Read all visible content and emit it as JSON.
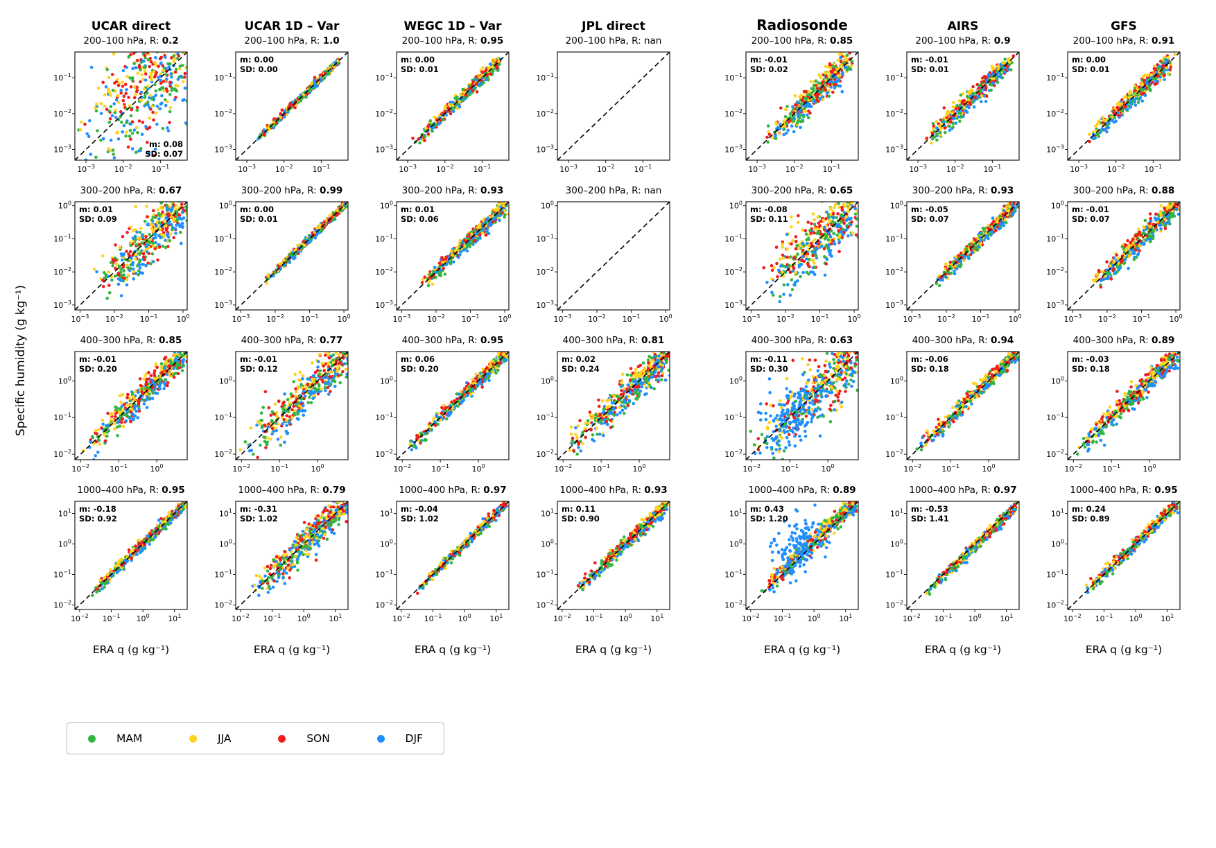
{
  "figure": {
    "ylabel": "Specific humidity (g kg⁻¹)"
  },
  "columns": [
    {
      "id": "ucar-direct",
      "label": "UCAR direct",
      "xlabel": "ERA q (g kg⁻¹)",
      "large": false
    },
    {
      "id": "ucar-1dvar",
      "label": "UCAR 1D – Var",
      "xlabel": "ERA q (g kg⁻¹)",
      "large": false
    },
    {
      "id": "wegc-1dvar",
      "label": "WEGC 1D – Var",
      "xlabel": "ERA q  (g kg⁻¹)",
      "large": false
    },
    {
      "id": "jpl-direct",
      "label": "JPL direct",
      "xlabel": "ERA q (g kg⁻¹)",
      "large": false
    },
    {
      "id": "radiosonde",
      "label": "Radiosonde",
      "xlabel": "ERA q (g kg⁻¹)",
      "large": true
    },
    {
      "id": "airs",
      "label": "AIRS",
      "xlabel": "ERA q  (g kg⁻¹)",
      "large": false
    },
    {
      "id": "gfs",
      "label": "GFS",
      "xlabel": "ERA q (g kg⁻¹)",
      "large": false
    }
  ],
  "seasons": [
    {
      "label": "MAM",
      "color": "#33b540"
    },
    {
      "label": "JJA",
      "color": "#ffd21f"
    },
    {
      "label": "SON",
      "color": "#ef1c1c"
    },
    {
      "label": "DJF",
      "color": "#1f8fff"
    }
  ],
  "chart_data": {
    "type": "scatter",
    "scale": "log-log",
    "identity_line": true,
    "x_axis": "ERA q (g kg⁻¹)",
    "y_axis": "Specific humidity (g kg⁻¹)",
    "rows": [
      {
        "layer": "200–100 hPa",
        "title_prefix": "200–100 hPa, R: ",
        "lim": [
          -3.3,
          -0.28
        ],
        "ticks": [
          -3,
          -2,
          -1
        ],
        "data_lo": -2.75,
        "data_hi": -0.55
      },
      {
        "layer": "300–200 hPa",
        "title_prefix": "300–200 hPa, R: ",
        "lim": [
          -3.15,
          0.12
        ],
        "ticks": [
          -3,
          -2,
          -1,
          0
        ],
        "data_lo": -2.35,
        "data_hi": 0.02
      },
      {
        "layer": "400–300 hPa",
        "title_prefix": "400–300 hPa, R: ",
        "lim": [
          -2.15,
          0.8
        ],
        "ticks": [
          -2,
          -1,
          0
        ],
        "data_lo": -1.85,
        "data_hi": 0.72
      },
      {
        "layer": "1000–400 hPa",
        "title_prefix": "1000–400 hPa, R: ",
        "lim": [
          -2.15,
          1.4
        ],
        "ticks": [
          -2,
          -1,
          0,
          1
        ],
        "data_lo": -1.55,
        "data_hi": 1.3
      }
    ],
    "panels": [
      {
        "col": 0,
        "row": 0,
        "R": "0.2",
        "Rv": 0.2,
        "m": "m: 0.08",
        "sd": "SD: 0.07",
        "ann": "br",
        "yoff": 0.25
      },
      {
        "col": 1,
        "row": 0,
        "R": "1.0",
        "Rv": 1.0,
        "m": "m: 0.00",
        "sd": "SD: 0.00",
        "ann": "tl"
      },
      {
        "col": 2,
        "row": 0,
        "R": "0.95",
        "Rv": 0.95,
        "m": "m: 0.00",
        "sd": "SD: 0.01",
        "ann": "tl"
      },
      {
        "col": 3,
        "row": 0,
        "R": "nan",
        "Rv": null,
        "m": "",
        "sd": "",
        "ann": "none",
        "empty": true
      },
      {
        "col": 4,
        "row": 0,
        "R": "0.85",
        "Rv": 0.85,
        "m": "m: -0.01",
        "sd": "SD: 0.02",
        "ann": "tl"
      },
      {
        "col": 5,
        "row": 0,
        "R": "0.9",
        "Rv": 0.9,
        "m": "m: -0.01",
        "sd": "SD: 0.01",
        "ann": "tl"
      },
      {
        "col": 6,
        "row": 0,
        "R": "0.91",
        "Rv": 0.91,
        "m": "m: 0.00",
        "sd": "SD: 0.01",
        "ann": "tl"
      },
      {
        "col": 0,
        "row": 1,
        "R": "0.67",
        "Rv": 0.67,
        "m": "m: 0.01",
        "sd": "SD: 0.09",
        "ann": "tl"
      },
      {
        "col": 1,
        "row": 1,
        "R": "0.99",
        "Rv": 0.99,
        "m": "m: 0.00",
        "sd": "SD: 0.01",
        "ann": "tl"
      },
      {
        "col": 2,
        "row": 1,
        "R": "0.93",
        "Rv": 0.93,
        "m": "m: 0.01",
        "sd": "SD: 0.06",
        "ann": "tl"
      },
      {
        "col": 3,
        "row": 1,
        "R": "nan",
        "Rv": null,
        "m": "",
        "sd": "",
        "ann": "none",
        "empty": true
      },
      {
        "col": 4,
        "row": 1,
        "R": "0.65",
        "Rv": 0.65,
        "m": "m: -0.08",
        "sd": "SD: 0.11",
        "ann": "tl"
      },
      {
        "col": 5,
        "row": 1,
        "R": "0.93",
        "Rv": 0.93,
        "m": "m: -0.05",
        "sd": "SD: 0.07",
        "ann": "tl"
      },
      {
        "col": 6,
        "row": 1,
        "R": "0.88",
        "Rv": 0.88,
        "m": "m: -0.01",
        "sd": "SD: 0.07",
        "ann": "tl"
      },
      {
        "col": 0,
        "row": 2,
        "R": "0.85",
        "Rv": 0.85,
        "m": "m: -0.01",
        "sd": "SD: 0.20",
        "ann": "tl"
      },
      {
        "col": 1,
        "row": 2,
        "R": "0.77",
        "Rv": 0.77,
        "m": "m: -0.01",
        "sd": "SD: 0.12",
        "ann": "tl"
      },
      {
        "col": 2,
        "row": 2,
        "R": "0.95",
        "Rv": 0.95,
        "m": "m: 0.06",
        "sd": "SD: 0.20",
        "ann": "tl"
      },
      {
        "col": 3,
        "row": 2,
        "R": "0.81",
        "Rv": 0.81,
        "m": "m: 0.02",
        "sd": "SD: 0.24",
        "ann": "tl"
      },
      {
        "col": 4,
        "row": 2,
        "R": "0.63",
        "Rv": 0.63,
        "m": "m: -0.11",
        "sd": "SD: 0.30",
        "ann": "tl",
        "blob": true
      },
      {
        "col": 5,
        "row": 2,
        "R": "0.94",
        "Rv": 0.94,
        "m": "m: -0.06",
        "sd": "SD: 0.18",
        "ann": "tl"
      },
      {
        "col": 6,
        "row": 2,
        "R": "0.89",
        "Rv": 0.89,
        "m": "m: -0.03",
        "sd": "SD: 0.18",
        "ann": "tl"
      },
      {
        "col": 0,
        "row": 3,
        "R": "0.95",
        "Rv": 0.95,
        "m": "m: -0.18",
        "sd": "SD: 0.92",
        "ann": "tl"
      },
      {
        "col": 1,
        "row": 3,
        "R": "0.79",
        "Rv": 0.79,
        "m": "m: -0.31",
        "sd": "SD: 1.02",
        "ann": "tl"
      },
      {
        "col": 2,
        "row": 3,
        "R": "0.97",
        "Rv": 0.97,
        "m": "m: -0.04",
        "sd": "SD: 1.02",
        "ann": "tl"
      },
      {
        "col": 3,
        "row": 3,
        "R": "0.93",
        "Rv": 0.93,
        "m": "m: 0.11",
        "sd": "SD: 0.90",
        "ann": "tl"
      },
      {
        "col": 4,
        "row": 3,
        "R": "0.89",
        "Rv": 0.89,
        "m": "m: 0.43",
        "sd": "SD: 1.20",
        "ann": "tl",
        "blob": true,
        "yoff": 0.1
      },
      {
        "col": 5,
        "row": 3,
        "R": "0.97",
        "Rv": 0.97,
        "m": "m: -0.53",
        "sd": "SD: 1.41",
        "ann": "tl",
        "yoff": -0.08
      },
      {
        "col": 6,
        "row": 3,
        "R": "0.95",
        "Rv": 0.95,
        "m": "m: 0.24",
        "sd": "SD: 0.89",
        "ann": "tl"
      }
    ]
  }
}
